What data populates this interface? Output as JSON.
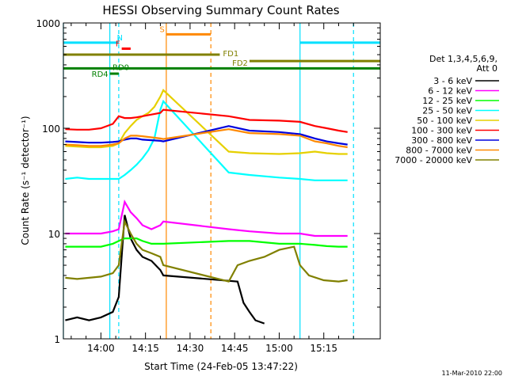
{
  "chart_data": {
    "type": "line",
    "title": "HESSI Observing Summary Count Rates",
    "xlabel": "Start Time (24-Feb-05 13:47:22)",
    "ylabel": "Count Rate (s⁻¹ detector⁻¹)",
    "y_scale": "log",
    "ylim": [
      1,
      1000
    ],
    "xlim": [
      "13:47:22",
      "15:34:00"
    ],
    "x_ticks": [
      "14:00",
      "14:15",
      "14:30",
      "14:45",
      "15:00",
      "15:15"
    ],
    "y_ticks": [
      "1",
      "10",
      "100",
      "1000"
    ],
    "grid": false,
    "legend_position": "right",
    "legend_title": "Det 1,3,4,5,6,9,",
    "legend_subtitle": "Att 0",
    "timestamp": "11-Mar-2010 22:00",
    "series": [
      {
        "name": "3 - 6 keV",
        "color": "#000000",
        "x": [
          "13:48",
          "13:52",
          "13:56",
          "14:00",
          "14:04",
          "14:06",
          "14:08",
          "14:10",
          "14:12",
          "14:14",
          "14:17",
          "14:20",
          "14:21",
          "14:46",
          "14:48",
          "14:50",
          "14:52",
          "14:55"
        ],
        "y": [
          1.5,
          1.6,
          1.5,
          1.6,
          1.8,
          2.5,
          15,
          9,
          7,
          6,
          5.5,
          4.5,
          4,
          3.5,
          2.2,
          1.8,
          1.5,
          1.4
        ]
      },
      {
        "name": "6 - 12 keV",
        "color": "#ff00ff",
        "x": [
          "13:48",
          "13:52",
          "13:56",
          "14:00",
          "14:04",
          "14:06",
          "14:08",
          "14:10",
          "14:12",
          "14:14",
          "14:17",
          "14:20",
          "14:21",
          "14:43",
          "14:50",
          "15:00",
          "15:07",
          "15:12",
          "15:16",
          "15:20",
          "15:23"
        ],
        "y": [
          10,
          10,
          10,
          10,
          10.5,
          11,
          20,
          16,
          14,
          12,
          11,
          12,
          13,
          11,
          10.5,
          10,
          10,
          9.5,
          9.5,
          9.5,
          9.5
        ]
      },
      {
        "name": "12 - 25 keV",
        "color": "#00ff00",
        "x": [
          "13:48",
          "13:52",
          "13:56",
          "14:00",
          "14:04",
          "14:06",
          "14:08",
          "14:10",
          "14:12",
          "14:14",
          "14:17",
          "14:20",
          "14:21",
          "14:43",
          "14:50",
          "15:00",
          "15:07",
          "15:12",
          "15:16",
          "15:20",
          "15:23"
        ],
        "y": [
          7.5,
          7.5,
          7.5,
          7.5,
          8,
          8.5,
          9,
          9,
          9,
          8.5,
          8,
          8,
          8,
          8.5,
          8.5,
          8,
          8,
          7.8,
          7.6,
          7.5,
          7.5
        ]
      },
      {
        "name": "25 - 50 keV",
        "color": "#00ffff",
        "x": [
          "13:48",
          "13:52",
          "13:56",
          "14:00",
          "14:04",
          "14:06",
          "14:08",
          "14:10",
          "14:12",
          "14:14",
          "14:16",
          "14:18",
          "14:20",
          "14:21",
          "14:43",
          "14:50",
          "15:00",
          "15:07",
          "15:12",
          "15:16",
          "15:20",
          "15:23"
        ],
        "y": [
          33,
          34,
          33,
          33,
          33,
          33,
          36,
          40,
          45,
          52,
          62,
          80,
          150,
          180,
          38,
          36,
          34,
          33,
          32,
          32,
          32,
          32
        ]
      },
      {
        "name": "50 - 100 keV",
        "color": "#e6d000",
        "x": [
          "13:48",
          "13:52",
          "13:56",
          "14:00",
          "14:04",
          "14:06",
          "14:08",
          "14:10",
          "14:12",
          "14:14",
          "14:16",
          "14:18",
          "14:20",
          "14:21",
          "14:43",
          "14:50",
          "15:00",
          "15:07",
          "15:12",
          "15:16",
          "15:20",
          "15:23"
        ],
        "y": [
          68,
          67,
          66,
          66,
          68,
          72,
          90,
          105,
          120,
          130,
          140,
          160,
          200,
          230,
          60,
          58,
          57,
          58,
          60,
          58,
          57,
          57
        ]
      },
      {
        "name": "100 - 300 keV",
        "color": "#ff0000",
        "x": [
          "13:48",
          "13:52",
          "13:56",
          "14:00",
          "14:04",
          "14:06",
          "14:08",
          "14:10",
          "14:12",
          "14:14",
          "14:17",
          "14:20",
          "14:21",
          "14:43",
          "14:50",
          "15:00",
          "15:07",
          "15:12",
          "15:16",
          "15:20",
          "15:23"
        ],
        "y": [
          98,
          97,
          97,
          100,
          110,
          130,
          125,
          125,
          127,
          130,
          135,
          140,
          150,
          130,
          120,
          118,
          115,
          105,
          100,
          95,
          92
        ]
      },
      {
        "name": "300 - 800 keV",
        "color": "#0000dd",
        "x": [
          "13:48",
          "13:52",
          "13:56",
          "14:00",
          "14:04",
          "14:06",
          "14:08",
          "14:10",
          "14:12",
          "14:14",
          "14:17",
          "14:20",
          "14:21",
          "14:43",
          "14:50",
          "15:00",
          "15:07",
          "15:12",
          "15:16",
          "15:20",
          "15:23"
        ],
        "y": [
          75,
          74,
          73,
          73,
          74,
          75,
          78,
          80,
          80,
          78,
          77,
          76,
          75,
          105,
          95,
          92,
          88,
          80,
          75,
          72,
          70
        ]
      },
      {
        "name": "800 - 7000 keV",
        "color": "#ff8800",
        "x": [
          "13:48",
          "13:52",
          "13:56",
          "14:00",
          "14:04",
          "14:06",
          "14:08",
          "14:10",
          "14:12",
          "14:14",
          "14:17",
          "14:20",
          "14:21",
          "14:43",
          "14:50",
          "15:00",
          "15:07",
          "15:12",
          "15:16",
          "15:20",
          "15:23"
        ],
        "y": [
          70,
          69,
          68,
          68,
          70,
          72,
          80,
          85,
          85,
          84,
          82,
          80,
          79,
          98,
          90,
          88,
          85,
          75,
          72,
          68,
          66
        ]
      },
      {
        "name": "7000 - 20000 keV",
        "color": "#808000",
        "x": [
          "13:48",
          "13:52",
          "13:56",
          "14:00",
          "14:04",
          "14:06",
          "14:08",
          "14:10",
          "14:12",
          "14:14",
          "14:17",
          "14:20",
          "14:21",
          "14:43",
          "14:46",
          "14:50",
          "14:55",
          "15:00",
          "15:05",
          "15:07",
          "15:10",
          "15:15",
          "15:20",
          "15:23"
        ],
        "y": [
          3.8,
          3.7,
          3.8,
          3.9,
          4.2,
          5,
          13,
          10,
          8,
          7,
          6.5,
          6,
          5,
          3.5,
          5,
          5.5,
          6,
          7,
          7.5,
          5,
          4,
          3.6,
          3.5,
          3.6
        ]
      }
    ],
    "flags": [
      {
        "label": "N",
        "color": "#00e0ff",
        "level": 650,
        "segments": [
          [
            "13:47:22",
            "14:06"
          ],
          [
            "15:07",
            "15:34"
          ]
        ]
      },
      {
        "label": "F",
        "color": "#ff0000",
        "level": 570,
        "segments": [
          [
            "14:07",
            "14:10"
          ]
        ]
      },
      {
        "label": "S",
        "color": "#ff8800",
        "level": 780,
        "segments": [
          [
            "14:22",
            "14:37"
          ]
        ]
      },
      {
        "label": "FD1",
        "color": "#808000",
        "level": 500,
        "segments": [
          [
            "13:47:22",
            "14:40"
          ]
        ]
      },
      {
        "label": "FD2",
        "color": "#808000",
        "level": 435,
        "segments": [
          [
            "14:50",
            "15:34"
          ]
        ]
      },
      {
        "label": "RD0",
        "color": "#008000",
        "level": 370,
        "segments": [
          [
            "13:47:22",
            "15:34"
          ]
        ]
      },
      {
        "label": "RD4",
        "color": "#008000",
        "level": 330,
        "segments": [
          [
            "14:03",
            "14:06"
          ]
        ]
      }
    ],
    "markers": [
      {
        "time": "13:47:22",
        "color": "#00e0ff",
        "style": "solid"
      },
      {
        "time": "14:03",
        "color": "#00e0ff",
        "style": "solid"
      },
      {
        "time": "14:06",
        "color": "#00e0ff",
        "style": "dashed"
      },
      {
        "time": "14:22",
        "color": "#ff8800",
        "style": "solid"
      },
      {
        "time": "14:37",
        "color": "#ff8800",
        "style": "dashed"
      },
      {
        "time": "15:07",
        "color": "#00e0ff",
        "style": "solid"
      },
      {
        "time": "15:25",
        "color": "#00e0ff",
        "style": "dashed"
      }
    ]
  }
}
